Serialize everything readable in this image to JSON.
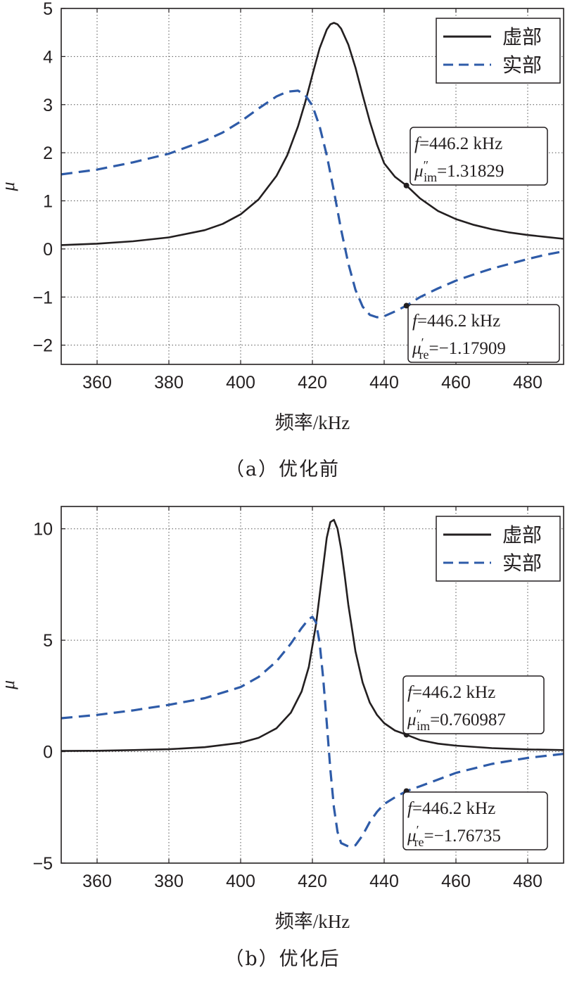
{
  "chart_data": [
    {
      "type": "line",
      "caption": "（a）优化前",
      "xlabel": "频率/kHz",
      "ylabel": "μ",
      "xlim": [
        350,
        490
      ],
      "ylim": [
        -2.4,
        5
      ],
      "xticks": [
        360,
        380,
        400,
        420,
        440,
        460,
        480
      ],
      "yticks": [
        -2,
        -1,
        0,
        1,
        2,
        3,
        4,
        5
      ],
      "ytick_labels": [
        "−2",
        "−1",
        "0",
        "1",
        "2",
        "3",
        "4",
        "5"
      ],
      "grid": true,
      "legend_position": "top-right",
      "series": [
        {
          "name": "虚部",
          "color": "#231f20",
          "style": "solid",
          "x": [
            350,
            360,
            370,
            380,
            390,
            395,
            400,
            405,
            410,
            413,
            416,
            418,
            420,
            422,
            424,
            425,
            426,
            427,
            428,
            430,
            432,
            434,
            436,
            438,
            440,
            443,
            446.2,
            450,
            455,
            460,
            465,
            470,
            475,
            480,
            485,
            490
          ],
          "y": [
            0.08,
            0.11,
            0.16,
            0.24,
            0.39,
            0.52,
            0.72,
            1.03,
            1.52,
            1.95,
            2.55,
            3.05,
            3.62,
            4.17,
            4.56,
            4.67,
            4.7,
            4.67,
            4.58,
            4.25,
            3.77,
            3.2,
            2.65,
            2.17,
            1.78,
            1.5,
            1.31829,
            1.05,
            0.79,
            0.62,
            0.5,
            0.41,
            0.34,
            0.29,
            0.25,
            0.21
          ]
        },
        {
          "name": "实部",
          "color": "#2e5ba8",
          "style": "dashed",
          "x": [
            350,
            360,
            370,
            380,
            390,
            395,
            400,
            405,
            410,
            413,
            416,
            418,
            420,
            422,
            424,
            426,
            428,
            430,
            432,
            434,
            436,
            438,
            440,
            443,
            446.2,
            450,
            455,
            460,
            465,
            470,
            475,
            480,
            485,
            490
          ],
          "y": [
            1.55,
            1.65,
            1.8,
            1.98,
            2.25,
            2.42,
            2.65,
            2.92,
            3.17,
            3.27,
            3.29,
            3.2,
            2.98,
            2.55,
            1.95,
            1.2,
            0.4,
            -0.3,
            -0.85,
            -1.2,
            -1.37,
            -1.42,
            -1.4,
            -1.3,
            -1.17909,
            -1.0,
            -0.82,
            -0.66,
            -0.53,
            -0.41,
            -0.31,
            -0.21,
            -0.12,
            -0.05
          ]
        }
      ],
      "annotations": [
        {
          "series": "虚部",
          "x": 446.2,
          "y": 1.31829,
          "line1": "f",
          "line1_rest": "=446.2 kHz",
          "sym": "μ",
          "sup": "″",
          "sub": "im",
          "value": "=1.31829"
        },
        {
          "series": "实部",
          "x": 446.2,
          "y": -1.17909,
          "line1": "f",
          "line1_rest": "=446.2 kHz",
          "sym": "μ",
          "sup": "′",
          "sub": "re",
          "value": "=−1.17909"
        }
      ]
    },
    {
      "type": "line",
      "caption": "（b）优化后",
      "xlabel": "频率/kHz",
      "ylabel": "μ",
      "xlim": [
        350,
        490
      ],
      "ylim": [
        -5,
        11
      ],
      "xticks": [
        360,
        380,
        400,
        420,
        440,
        460,
        480
      ],
      "yticks": [
        -5,
        0,
        5,
        10
      ],
      "ytick_labels": [
        "−5",
        "0",
        "5",
        "10"
      ],
      "grid": true,
      "legend_position": "top-right",
      "series": [
        {
          "name": "虚部",
          "color": "#231f20",
          "style": "solid",
          "x": [
            350,
            360,
            370,
            380,
            390,
            400,
            405,
            410,
            414,
            417,
            419,
            421,
            423,
            424,
            425,
            426,
            427,
            428,
            429,
            430,
            432,
            434,
            436,
            438,
            440,
            443,
            446.2,
            450,
            455,
            460,
            470,
            480,
            490
          ],
          "y": [
            0.03,
            0.04,
            0.07,
            0.11,
            0.2,
            0.4,
            0.62,
            1.05,
            1.75,
            2.7,
            3.8,
            5.7,
            8.3,
            9.6,
            10.3,
            10.4,
            10.0,
            9.1,
            7.9,
            6.6,
            4.5,
            3.1,
            2.2,
            1.65,
            1.28,
            0.95,
            0.760987,
            0.52,
            0.36,
            0.27,
            0.16,
            0.1,
            0.07
          ]
        },
        {
          "name": "实部",
          "color": "#2e5ba8",
          "style": "dashed",
          "x": [
            350,
            360,
            370,
            380,
            390,
            400,
            405,
            410,
            414,
            417,
            419,
            420,
            421,
            422,
            423,
            424,
            425,
            426,
            427,
            428,
            430,
            432,
            434,
            436,
            438,
            440,
            443,
            446.2,
            450,
            455,
            460,
            470,
            480,
            490
          ],
          "y": [
            1.5,
            1.65,
            1.85,
            2.1,
            2.4,
            2.9,
            3.35,
            4.05,
            4.85,
            5.55,
            5.95,
            6.05,
            5.8,
            4.9,
            3.3,
            1.3,
            -0.8,
            -2.5,
            -3.6,
            -4.1,
            -4.25,
            -4.2,
            -3.75,
            -3.15,
            -2.7,
            -2.35,
            -2.05,
            -1.76735,
            -1.55,
            -1.25,
            -0.95,
            -0.55,
            -0.28,
            -0.1
          ]
        }
      ],
      "annotations": [
        {
          "series": "虚部",
          "x": 446.2,
          "y": 0.760987,
          "line1": "f",
          "line1_rest": "=446.2 kHz",
          "sym": "μ",
          "sup": "″",
          "sub": "im",
          "value": "=0.760987"
        },
        {
          "series": "实部",
          "x": 446.2,
          "y": -1.76735,
          "line1": "f",
          "line1_rest": "=446.2 kHz",
          "sym": "μ",
          "sup": "′",
          "sub": "re",
          "value": "=−1.76735"
        }
      ]
    }
  ]
}
